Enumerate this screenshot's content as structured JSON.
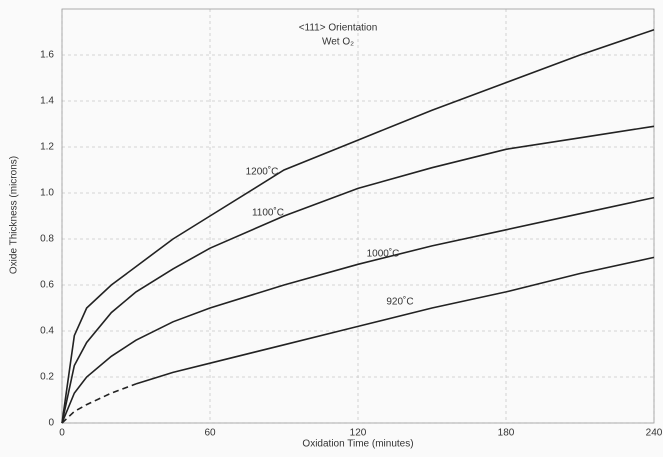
{
  "chart_data": {
    "type": "line",
    "annotations": [
      "<111> Orientation",
      "Wet O₂"
    ],
    "x_label": "Oxidation Time (minutes)",
    "y_label": "Oxide Thickness (microns)",
    "x": [
      0,
      5,
      10,
      20,
      30,
      45,
      60,
      90,
      120,
      150,
      180,
      210,
      240
    ],
    "series": [
      {
        "name": "1200˚C",
        "color": "#222222",
        "values": [
          0,
          0.38,
          0.5,
          0.6,
          0.68,
          0.8,
          0.9,
          1.1,
          1.23,
          1.36,
          1.48,
          1.6,
          1.71
        ]
      },
      {
        "name": "1100˚C",
        "color": "#222222",
        "values": [
          0,
          0.25,
          0.35,
          0.48,
          0.57,
          0.67,
          0.76,
          0.9,
          1.02,
          1.11,
          1.19,
          1.24,
          1.29
        ]
      },
      {
        "name": "1000˚C",
        "color": "#222222",
        "values": [
          0,
          0.13,
          0.2,
          0.29,
          0.36,
          0.44,
          0.5,
          0.6,
          0.69,
          0.77,
          0.84,
          0.91,
          0.98
        ]
      },
      {
        "name": "920˚C",
        "color": "#222222",
        "values": [
          0,
          0.05,
          0.08,
          0.13,
          0.17,
          0.22,
          0.26,
          0.34,
          0.42,
          0.5,
          0.57,
          0.65,
          0.72
        ],
        "dashed_until": 30
      }
    ],
    "xlim": [
      0,
      240
    ],
    "xticks": [
      0,
      60,
      120,
      180,
      240
    ],
    "ylim": [
      0,
      1.8
    ],
    "yticks": [
      0,
      0.2,
      0.4,
      0.6,
      0.8,
      {
        "value": 1,
        "label": "1.0"
      },
      1.2,
      1.4,
      1.6
    ],
    "grid": true
  }
}
